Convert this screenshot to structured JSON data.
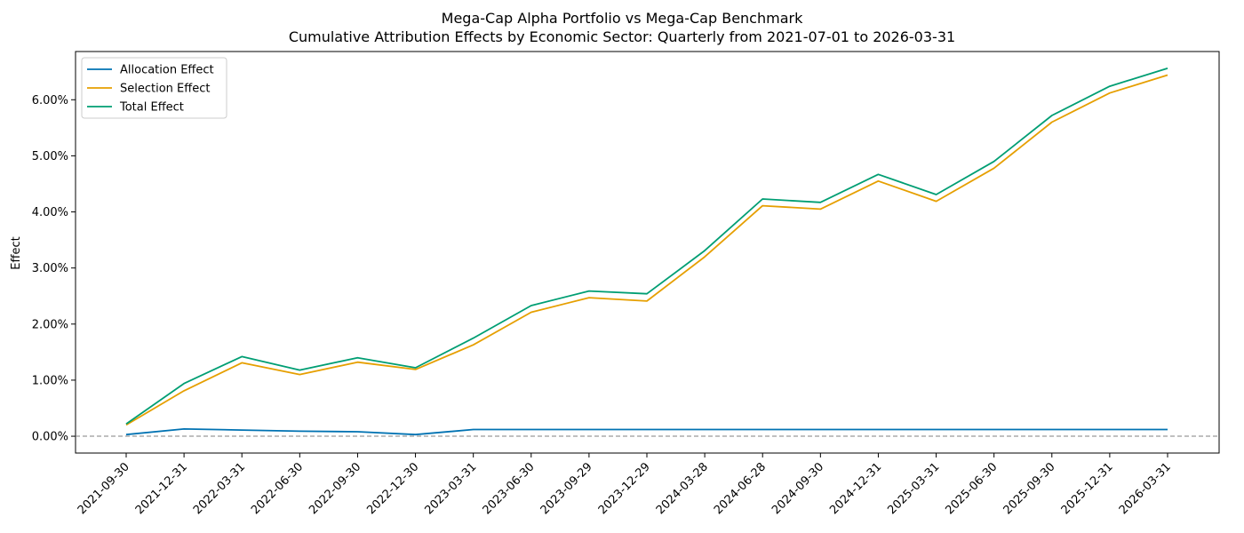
{
  "chart_data": {
    "type": "line",
    "title": "Mega-Cap Alpha Portfolio vs Mega-Cap Benchmark",
    "subtitle": "Cumulative Attribution Effects by Economic Sector: Quarterly from 2021-07-01 to 2026-03-31",
    "xlabel": "",
    "ylabel": "Effect",
    "x": [
      "2021-09-30",
      "2021-12-31",
      "2022-03-31",
      "2022-06-30",
      "2022-09-30",
      "2022-12-30",
      "2023-03-31",
      "2023-06-30",
      "2023-09-29",
      "2023-12-29",
      "2024-03-28",
      "2024-06-28",
      "2024-09-30",
      "2024-12-31",
      "2025-03-31",
      "2025-06-30",
      "2025-09-30",
      "2025-12-31",
      "2026-03-31"
    ],
    "series": [
      {
        "name": "Allocation Effect",
        "color": "#0072b2",
        "values": [
          0.03,
          0.13,
          0.11,
          0.09,
          0.08,
          0.03,
          0.12,
          0.12,
          0.12,
          0.12,
          0.12,
          0.12,
          0.12,
          0.12,
          0.12,
          0.12,
          0.12,
          0.12,
          0.12
        ]
      },
      {
        "name": "Selection Effect",
        "color": "#e69f00",
        "values": [
          0.2,
          0.81,
          1.31,
          1.1,
          1.32,
          1.19,
          1.63,
          2.21,
          2.47,
          2.41,
          3.2,
          4.11,
          4.05,
          4.55,
          4.19,
          4.78,
          5.6,
          6.12,
          6.44
        ]
      },
      {
        "name": "Total Effect",
        "color": "#009e73",
        "values": [
          0.22,
          0.94,
          1.42,
          1.18,
          1.4,
          1.22,
          1.75,
          2.33,
          2.59,
          2.54,
          3.31,
          4.23,
          4.17,
          4.67,
          4.31,
          4.9,
          5.72,
          6.24,
          6.56
        ]
      }
    ],
    "yticks": [
      0,
      1,
      2,
      3,
      4,
      5,
      6
    ],
    "ytick_labels": [
      "0.00%",
      "1.00%",
      "2.00%",
      "3.00%",
      "4.00%",
      "5.00%",
      "6.00%"
    ],
    "ylim": [
      -0.3,
      6.86
    ],
    "reference_line": {
      "y": 0,
      "style": "dashed",
      "color": "#808080"
    },
    "grid": false,
    "legend_position": "top-left"
  }
}
